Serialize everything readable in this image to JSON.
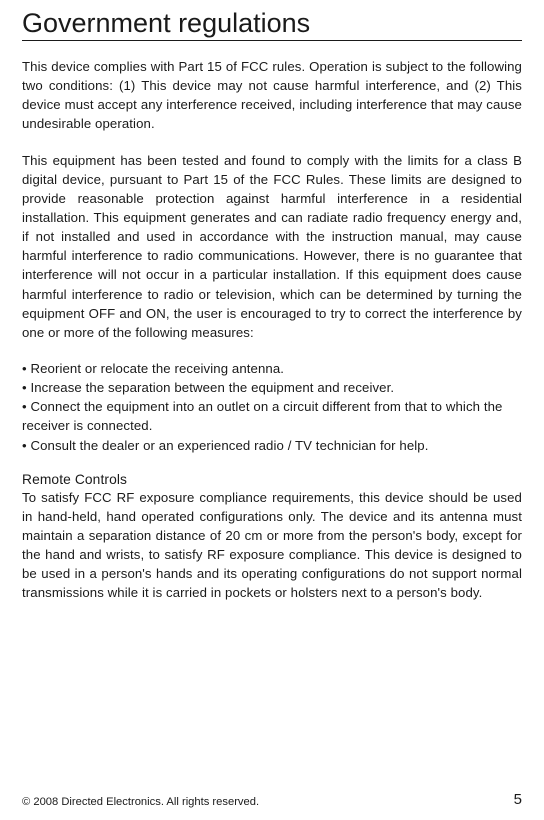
{
  "title": "Government regulations",
  "para1": "This device complies with Part 15 of FCC rules. Operation is subject to the following two conditions: (1) This device may not cause harmful interference, and (2) This device must accept any interference received, including interference that may cause undesirable operation.",
  "para2": "This equipment has been tested and found to comply with the limits for a class B digital device, pursuant to Part 15 of the FCC Rules. These limits are designed to provide reasonable protection against harmful interference in a residential installation. This equipment generates and can radiate radio frequency energy and, if not installed and used in accordance with the instruction manual, may cause harmful interference to radio communications. However, there is no guarantee that interference will not occur in a particular installation. If this equipment does cause harmful interference to radio or television, which can be determined by turning the equipment OFF and ON, the user is encouraged to try to correct the interference by one or more of the following measures:",
  "bullets": [
    "• Reorient or relocate the receiving antenna.",
    "• Increase the separation between the equipment and receiver.",
    "• Connect the equipment into an outlet on a circuit different from that to which the receiver is connected.",
    "• Consult the dealer or an experienced radio / TV technician for help."
  ],
  "subhead": "Remote Controls",
  "para3": "To satisfy FCC RF exposure compliance requirements, this device should be used in hand-held, hand operated configurations only.  The device and its antenna must maintain a separation distance of 20 cm or more from the person's body, except for the hand and wrists, to satisfy RF exposure compliance.  This device is designed to be used in a person's hands and its operating configurations do not support normal transmissions while it is carried in pockets or holsters next to a person's body.",
  "footer_copyright": "© 2008 Directed Electronics. All rights reserved.",
  "footer_page": "5"
}
